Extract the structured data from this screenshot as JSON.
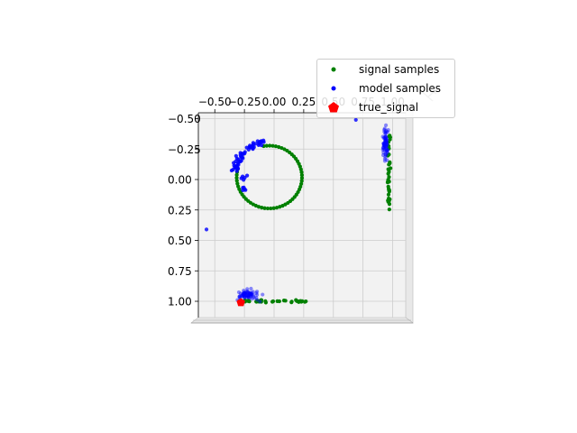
{
  "chart_data": {
    "type": "scatter",
    "projection": "3d",
    "title": "",
    "xlabel": "",
    "ylabel": "",
    "x_ticks": [
      "−0.50",
      "−0.25",
      "0.00",
      "0.25",
      "0.50",
      "0.75",
      "1.00"
    ],
    "y_ticks": [
      "−0.50",
      "−0.25",
      "0.00",
      "0.25",
      "0.50",
      "0.75",
      "1.00"
    ],
    "xlim": [
      -0.62,
      1.15
    ],
    "ylim": [
      -0.5,
      1.0
    ],
    "grid": true,
    "legend_position": "top-right",
    "colors": {
      "signal_samples": "#008000",
      "model_samples": "#0000ff",
      "true_signal": "#ff0000",
      "pane": "#f2f2f2",
      "grid": "#cccccc"
    },
    "series": [
      {
        "name": "signal samples",
        "marker": "circle",
        "groups": [
          {
            "role": "main-view ring",
            "circle": {
              "center": [
                -0.04,
                -0.02
              ],
              "radius": 0.27,
              "n": 56
            }
          },
          {
            "role": "bottom projection line",
            "x_range": [
              -0.3,
              0.27
            ],
            "y": 1.0,
            "n": 40
          },
          {
            "role": "right projection line",
            "x": 0.97,
            "y_range": [
              -0.38,
              0.25
            ],
            "n": 40
          }
        ]
      },
      {
        "name": "model samples",
        "marker": "circle",
        "groups": [
          {
            "role": "main-view arc",
            "n": 60
          },
          {
            "role": "bottom projection cluster",
            "n": 70
          },
          {
            "role": "right projection cluster",
            "n": 70
          }
        ]
      },
      {
        "name": "true_signal",
        "marker": "pentagon",
        "points": [
          [
            -0.28,
            1.01
          ]
        ]
      }
    ]
  },
  "legend": {
    "items": [
      {
        "label": "signal samples",
        "color": "#008000",
        "marker": "circle"
      },
      {
        "label": "model samples",
        "color": "#0000ff",
        "marker": "circle"
      },
      {
        "label": "true_signal",
        "color": "#ff0000",
        "marker": "pentagon"
      }
    ]
  }
}
